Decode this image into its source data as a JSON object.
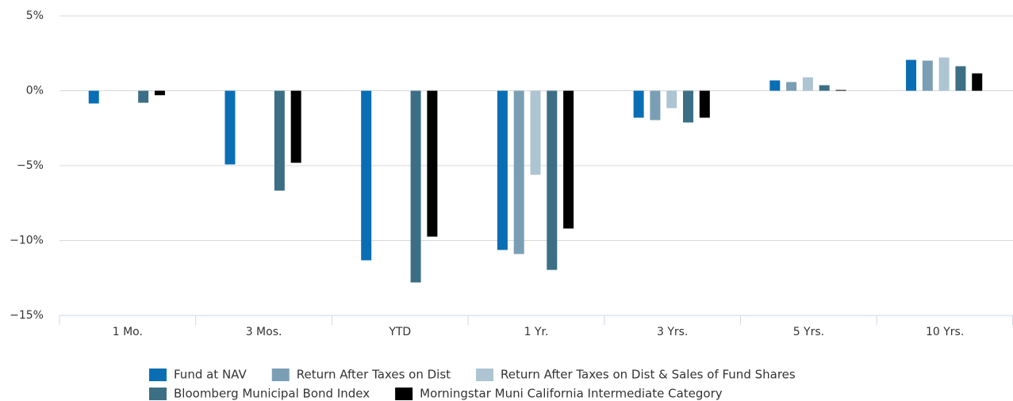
{
  "chart_data": {
    "type": "bar",
    "categories": [
      "1 Mo.",
      "3 Mos.",
      "YTD",
      "1 Yr.",
      "3 Yrs.",
      "5 Yrs.",
      "10 Yrs."
    ],
    "series": [
      {
        "name": "Fund at NAV",
        "color": "#0a6eb4",
        "values": [
          -0.85,
          -4.92,
          -11.32,
          -10.63,
          -1.8,
          0.69,
          2.06
        ]
      },
      {
        "name": "Return After Taxes on Dist",
        "color": "#7a9fb5",
        "values": [
          null,
          null,
          null,
          -10.9,
          -1.96,
          0.58,
          2.01
        ]
      },
      {
        "name": "Return After Taxes on Dist & Sales of Fund Shares",
        "color": "#adc5d3",
        "values": [
          null,
          null,
          null,
          -5.61,
          -1.16,
          0.9,
          2.22
        ]
      },
      {
        "name": "Bloomberg Municipal Bond Index",
        "color": "#3c6f85",
        "values": [
          -0.8,
          -6.67,
          -12.8,
          -11.96,
          -2.12,
          0.37,
          1.64
        ]
      },
      {
        "name": "Morningstar Muni California Intermediate Category",
        "color": "#000000",
        "values": [
          -0.3,
          -4.81,
          -9.74,
          -9.2,
          -1.8,
          0.05,
          1.16
        ]
      }
    ],
    "ylim": [
      -15,
      5
    ],
    "yticks": [
      {
        "value": -15,
        "label": "−15%"
      },
      {
        "value": -10,
        "label": "−10%"
      },
      {
        "value": -5,
        "label": "−5%"
      },
      {
        "value": 0,
        "label": "0%"
      },
      {
        "value": 5,
        "label": "5%"
      }
    ],
    "grid": true
  }
}
